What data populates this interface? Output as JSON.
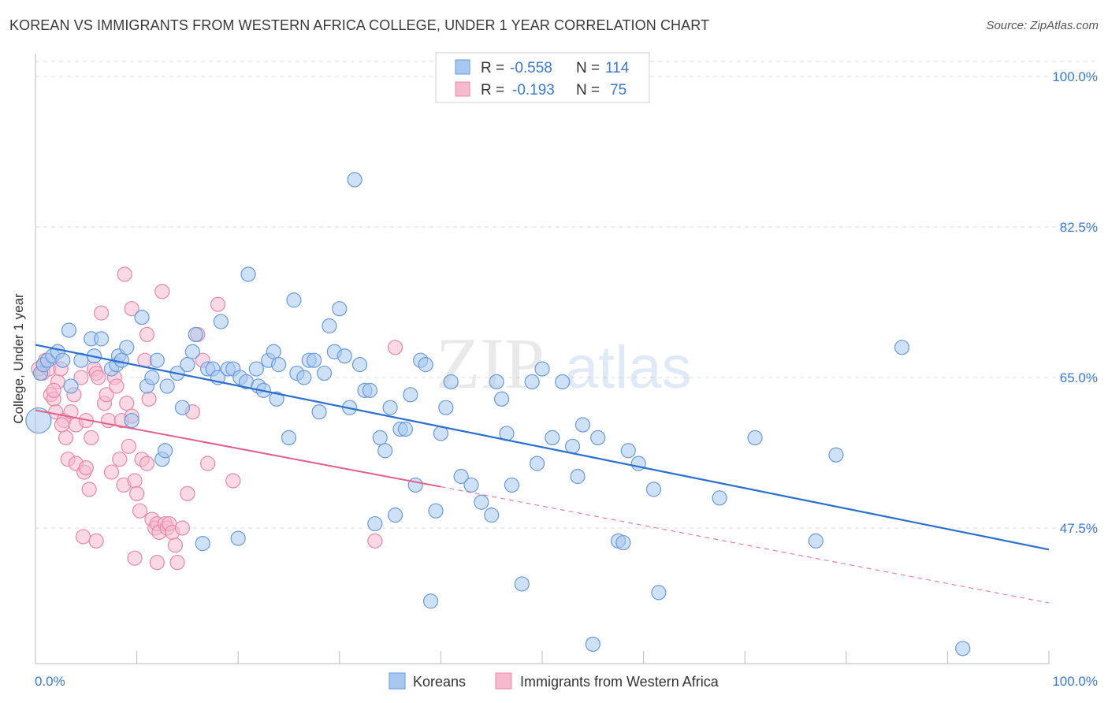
{
  "title": "KOREAN VS IMMIGRANTS FROM WESTERN AFRICA COLLEGE, UNDER 1 YEAR CORRELATION CHART",
  "source": "Source: ZipAtlas.com",
  "watermark": {
    "zip": "ZIP",
    "atlas": "atlas"
  },
  "legend_box": {
    "rows": [
      {
        "r_label": "R =",
        "r_value": "-0.558",
        "n_label": "N =",
        "n_value": "114"
      },
      {
        "r_label": "R =",
        "r_value": "-0.193",
        "n_label": "N =",
        "n_value": "75"
      }
    ]
  },
  "bottom_legend": [
    "Koreans",
    "Immigrants from Western Africa"
  ],
  "colors": {
    "blue_fill": "#a8c8f0",
    "blue_stroke": "#6a9ad8",
    "blue_line": "#2a6fcf",
    "pink_fill": "#f6b9cd",
    "pink_stroke": "#e888a8",
    "pink_line": "#e0608a",
    "tick_label": "#3b78d0",
    "grid": "#dddddd"
  },
  "chart_data": {
    "type": "scatter",
    "ylabel": "College, Under 1 year",
    "xlabel": "",
    "xlim": [
      0,
      100
    ],
    "ylim": [
      32,
      102
    ],
    "x_tick_labels": [
      "0.0%",
      "100.0%"
    ],
    "y_ticks": [
      47.5,
      65.0,
      82.5,
      100.0
    ],
    "y_tick_labels": [
      "47.5%",
      "65.0%",
      "82.5%",
      "100.0%"
    ],
    "grid": true,
    "series": [
      {
        "name": "Koreans",
        "points": [
          [
            0.3,
            60
          ],
          [
            0.5,
            65.5
          ],
          [
            0.8,
            66.5
          ],
          [
            1.2,
            67
          ],
          [
            1.7,
            67.5
          ],
          [
            2.2,
            68
          ],
          [
            2.7,
            67
          ],
          [
            3.3,
            70.5
          ],
          [
            3.5,
            64
          ],
          [
            4.5,
            67
          ],
          [
            5.5,
            69.5
          ],
          [
            5.8,
            67.5
          ],
          [
            6.5,
            69.5
          ],
          [
            7.5,
            66
          ],
          [
            8,
            66.5
          ],
          [
            8.2,
            67.5
          ],
          [
            8.5,
            67
          ],
          [
            9,
            68.5
          ],
          [
            9.5,
            60
          ],
          [
            10.5,
            72
          ],
          [
            11,
            64
          ],
          [
            11.5,
            65
          ],
          [
            12,
            67
          ],
          [
            12.5,
            55.5
          ],
          [
            12.8,
            56.5
          ],
          [
            13,
            64
          ],
          [
            14,
            65.5
          ],
          [
            14.5,
            61.5
          ],
          [
            15,
            66.5
          ],
          [
            15.5,
            68
          ],
          [
            15.8,
            70
          ],
          [
            16.5,
            45.7
          ],
          [
            17,
            66
          ],
          [
            17.5,
            66
          ],
          [
            18,
            65
          ],
          [
            18.3,
            71.5
          ],
          [
            19,
            66
          ],
          [
            19.5,
            66
          ],
          [
            20,
            46.3
          ],
          [
            20.2,
            65
          ],
          [
            20.8,
            64.5
          ],
          [
            21,
            77
          ],
          [
            21.8,
            66
          ],
          [
            22,
            64
          ],
          [
            22.5,
            63.5
          ],
          [
            23,
            67
          ],
          [
            23.5,
            68
          ],
          [
            23.8,
            62.5
          ],
          [
            24,
            66.5
          ],
          [
            25,
            58
          ],
          [
            25.5,
            74
          ],
          [
            25.8,
            65.5
          ],
          [
            26.5,
            65
          ],
          [
            27,
            67
          ],
          [
            27.5,
            67
          ],
          [
            28,
            61
          ],
          [
            28.5,
            65.5
          ],
          [
            29,
            71
          ],
          [
            29.5,
            68
          ],
          [
            30,
            73
          ],
          [
            30.5,
            67.5
          ],
          [
            31,
            61.5
          ],
          [
            31.5,
            88
          ],
          [
            32,
            66.5
          ],
          [
            32.5,
            63.5
          ],
          [
            33,
            63.5
          ],
          [
            33.5,
            48
          ],
          [
            34,
            58
          ],
          [
            34.5,
            56.5
          ],
          [
            35,
            61.5
          ],
          [
            35.5,
            49
          ],
          [
            36,
            59
          ],
          [
            36.5,
            59
          ],
          [
            37,
            63
          ],
          [
            37.5,
            52.5
          ],
          [
            38,
            67
          ],
          [
            38.5,
            66.5
          ],
          [
            39,
            39
          ],
          [
            39.5,
            49.5
          ],
          [
            40,
            58.5
          ],
          [
            40.5,
            61.5
          ],
          [
            41,
            64.5
          ],
          [
            42,
            53.5
          ],
          [
            43,
            52.5
          ],
          [
            44,
            50.5
          ],
          [
            45,
            49
          ],
          [
            45.5,
            64.5
          ],
          [
            46,
            62.5
          ],
          [
            46.5,
            58.5
          ],
          [
            47,
            52.5
          ],
          [
            48,
            41
          ],
          [
            49,
            64.5
          ],
          [
            49.5,
            55
          ],
          [
            50,
            66
          ],
          [
            51,
            58
          ],
          [
            52,
            64.5
          ],
          [
            53,
            57
          ],
          [
            53.5,
            53.5
          ],
          [
            54,
            59.5
          ],
          [
            55,
            34
          ],
          [
            55.5,
            58
          ],
          [
            57.5,
            46
          ],
          [
            58,
            45.8
          ],
          [
            58.5,
            56.5
          ],
          [
            59.5,
            55
          ],
          [
            61,
            52
          ],
          [
            61.5,
            40
          ],
          [
            67.5,
            51
          ],
          [
            71,
            58
          ],
          [
            77,
            46
          ],
          [
            79,
            56
          ],
          [
            85.5,
            68.5
          ],
          [
            91.5,
            33.5
          ]
        ]
      },
      {
        "name": "Immigrants from Western Africa",
        "points": [
          [
            0.3,
            66
          ],
          [
            0.7,
            65.5
          ],
          [
            1,
            67
          ],
          [
            1.3,
            66
          ],
          [
            1.5,
            63
          ],
          [
            1.8,
            62.5
          ],
          [
            2,
            61
          ],
          [
            2.2,
            64.5
          ],
          [
            2.5,
            66
          ],
          [
            2.8,
            60
          ],
          [
            3,
            58
          ],
          [
            3.2,
            55.5
          ],
          [
            3.5,
            61
          ],
          [
            4,
            59.5
          ],
          [
            4,
            55
          ],
          [
            4.5,
            65
          ],
          [
            4.8,
            54
          ],
          [
            5,
            60
          ],
          [
            5.3,
            52
          ],
          [
            5.5,
            58
          ],
          [
            5.8,
            66
          ],
          [
            6,
            65.5
          ],
          [
            6.2,
            65
          ],
          [
            6.5,
            72.5
          ],
          [
            6.8,
            62
          ],
          [
            7,
            63
          ],
          [
            7.2,
            60
          ],
          [
            7.5,
            54
          ],
          [
            7.8,
            65
          ],
          [
            8,
            64
          ],
          [
            8.3,
            55.5
          ],
          [
            8.5,
            60
          ],
          [
            8.7,
            52.5
          ],
          [
            9,
            62
          ],
          [
            9.2,
            57
          ],
          [
            9.5,
            60.5
          ],
          [
            9.8,
            53
          ],
          [
            10,
            51.5
          ],
          [
            10.3,
            49.5
          ],
          [
            10.5,
            55.5
          ],
          [
            10.8,
            67
          ],
          [
            11,
            55
          ],
          [
            11.2,
            62.5
          ],
          [
            11.5,
            48.5
          ],
          [
            11.8,
            47.5
          ],
          [
            12,
            48
          ],
          [
            12.2,
            47
          ],
          [
            12.5,
            75
          ],
          [
            12.8,
            48
          ],
          [
            13,
            47.5
          ],
          [
            13.2,
            48
          ],
          [
            13.5,
            47
          ],
          [
            13.8,
            45.5
          ],
          [
            14,
            43.5
          ],
          [
            14.5,
            47.5
          ],
          [
            15,
            51.5
          ],
          [
            15.5,
            61
          ],
          [
            16,
            70
          ],
          [
            16.5,
            67
          ],
          [
            17,
            55
          ],
          [
            18,
            73.5
          ],
          [
            19.5,
            53
          ],
          [
            33.5,
            46
          ],
          [
            35.5,
            68.5
          ],
          [
            8.8,
            77
          ],
          [
            9.5,
            73
          ],
          [
            4.7,
            46.5
          ],
          [
            9.8,
            44
          ],
          [
            12,
            43.5
          ],
          [
            5,
            54.5
          ],
          [
            6,
            46
          ],
          [
            11,
            70
          ],
          [
            3.8,
            63
          ],
          [
            2.6,
            59.5
          ],
          [
            1.8,
            63.5
          ]
        ]
      }
    ],
    "trend_lines": [
      {
        "series": "Koreans",
        "x": [
          0,
          100
        ],
        "y": [
          68.8,
          45.0
        ]
      },
      {
        "series": "Immigrants from Western Africa",
        "x": [
          0,
          40
        ],
        "y": [
          61.2,
          52.3
        ],
        "dashed_to": [
          100,
          38.8
        ]
      }
    ]
  }
}
